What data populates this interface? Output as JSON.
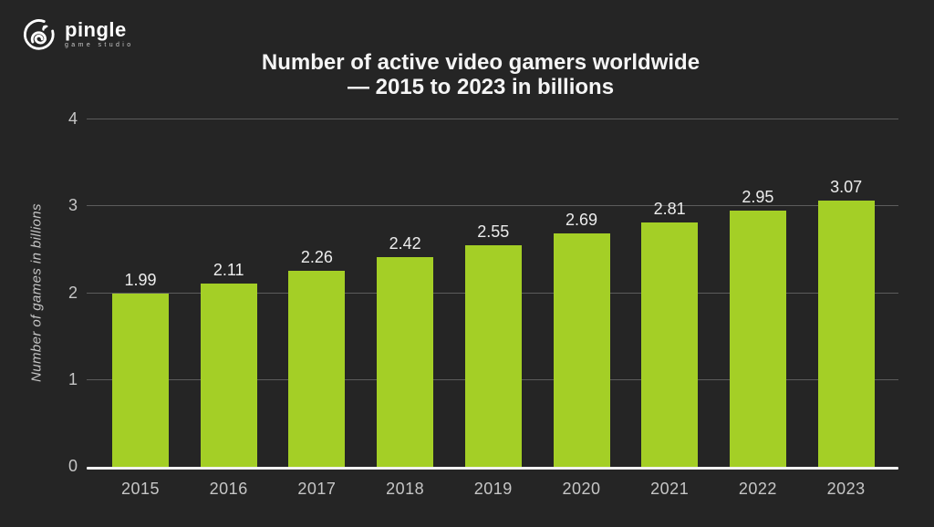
{
  "brand": {
    "name": "pingle",
    "tagline": "game studio"
  },
  "title": {
    "line1": "Number of active video gamers worldwide",
    "line2": "— 2015 to 2023 in billions"
  },
  "chart_data": {
    "type": "bar",
    "title": "Number of active video gamers worldwide — 2015 to 2023 in billions",
    "categories": [
      "2015",
      "2016",
      "2017",
      "2018",
      "2019",
      "2020",
      "2021",
      "2022",
      "2023"
    ],
    "values": [
      1.99,
      2.11,
      2.26,
      2.42,
      2.55,
      2.69,
      2.81,
      2.95,
      3.07
    ],
    "value_labels": [
      "1.99",
      "2.11",
      "2.26",
      "2.42",
      "2.55",
      "2.69",
      "2.81",
      "2.95",
      "3.07"
    ],
    "xlabel": "",
    "ylabel": "Number of games in billions",
    "ylim": [
      0,
      4
    ],
    "yticks": [
      0,
      1,
      2,
      3,
      4
    ],
    "grid": true,
    "legend_position": "none"
  },
  "colors": {
    "background": "#252525",
    "bar_green": "#a4cf26",
    "grid_line": "#5c5c5c",
    "axis_line": "#f2f2f2",
    "title_text": "#f5f5f5",
    "value_label": "#ededed",
    "tick_label": "#c6c6c6",
    "logo_white": "#ffffff"
  }
}
